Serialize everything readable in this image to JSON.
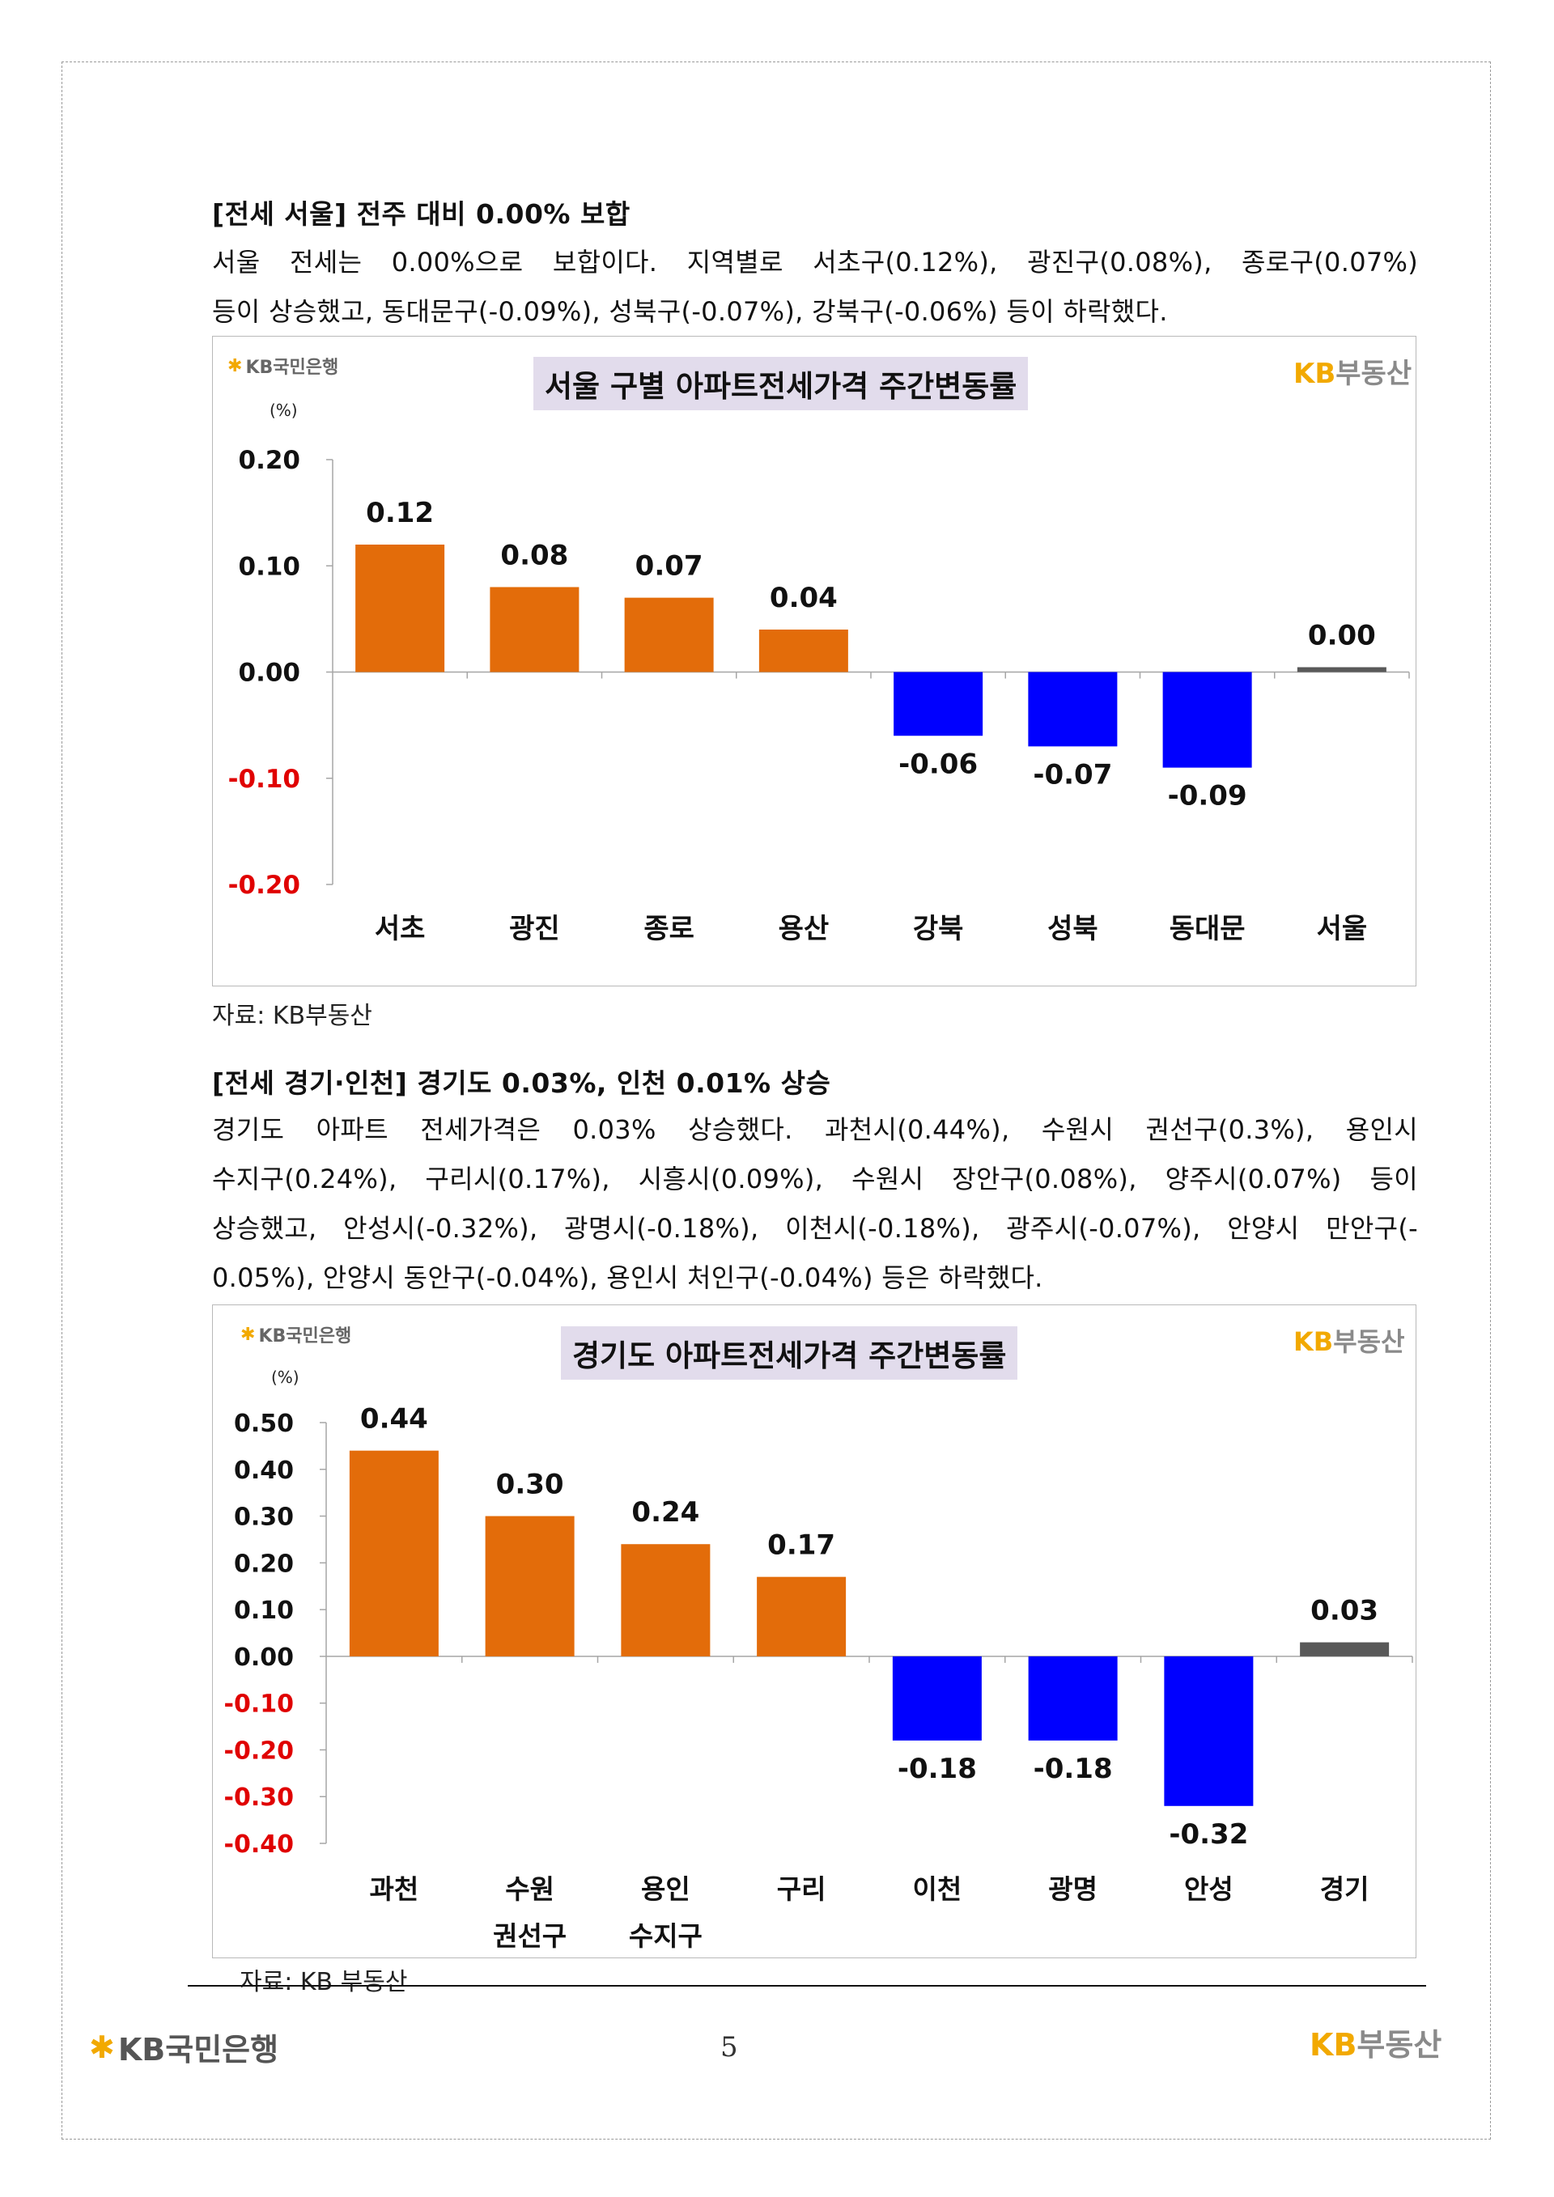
{
  "section1": {
    "heading": "[전세 서울] 전주 대비 0.00% 보합",
    "paragraph_lines": [
      "서울 전세는 0.00%으로 보합이다. 지역별로 서초구(0.12%), 광진구(0.08%), 종로구(0.07%)",
      "등이 상승했고, 동대문구(-0.09%), 성북구(-0.07%), 강북구(-0.06%) 등이 하락했다."
    ],
    "source": "자료: KB부동산"
  },
  "section2": {
    "heading": "[전세 경기·인천] 경기도 0.03%, 인천 0.01% 상승",
    "paragraph_lines": [
      "경기도 아파트 전세가격은 0.03% 상승했다. 과천시(0.44%), 수원시 권선구(0.3%), 용인시",
      "수지구(0.24%), 구리시(0.17%), 시흥시(0.09%), 수원시 장안구(0.08%), 양주시(0.07%) 등이",
      "상승했고, 안성시(-0.32%), 광명시(-0.18%), 이천시(-0.18%), 광주시(-0.07%), 안양시 만안구(-",
      "0.05%), 안양시 동안구(-0.04%), 용인시 처인구(-0.04%) 등은 하락했다."
    ],
    "source": "자료: KB 부동산"
  },
  "logos": {
    "kb_bank": "KB국민은행",
    "kb_realestate_kb": "KB",
    "kb_realestate_text": "부동산"
  },
  "footer": {
    "page_number": "5"
  },
  "colors": {
    "positive": "#e36c0a",
    "negative": "#0000ff",
    "total": "#595959",
    "negative_tick": "#e00000",
    "title_bg": "#e2dcec",
    "kb_yellow": "#f2a900"
  },
  "chart_data": [
    {
      "type": "bar",
      "title": "서울 구별 아파트전세가격 주간변동률",
      "unit_label": "(%)",
      "ylim": [
        -0.2,
        0.2
      ],
      "yticks": [
        0.2,
        0.1,
        0.0,
        -0.1,
        -0.2
      ],
      "ytick_labels": [
        "0.20",
        "0.10",
        "0.00",
        "-0.10",
        "-0.20"
      ],
      "categories": [
        [
          "서초"
        ],
        [
          "광진"
        ],
        [
          "종로"
        ],
        [
          "용산"
        ],
        [
          "강북"
        ],
        [
          "성북"
        ],
        [
          "동대문"
        ],
        [
          "서울"
        ]
      ],
      "values": [
        0.12,
        0.08,
        0.07,
        0.04,
        -0.06,
        -0.07,
        -0.09,
        0.0
      ],
      "value_labels": [
        "0.12",
        "0.08",
        "0.07",
        "0.04",
        "-0.06",
        "-0.07",
        "-0.09",
        "0.00"
      ],
      "total_index": 7,
      "grid": false
    },
    {
      "type": "bar",
      "title": "경기도 아파트전세가격 주간변동률",
      "unit_label": "(%)",
      "ylim": [
        -0.4,
        0.5
      ],
      "yticks": [
        0.5,
        0.4,
        0.3,
        0.2,
        0.1,
        0.0,
        -0.1,
        -0.2,
        -0.3,
        -0.4
      ],
      "ytick_labels": [
        "0.50",
        "0.40",
        "0.30",
        "0.20",
        "0.10",
        "0.00",
        "-0.10",
        "-0.20",
        "-0.30",
        "-0.40"
      ],
      "categories": [
        [
          "과천"
        ],
        [
          "수원",
          "권선구"
        ],
        [
          "용인",
          "수지구"
        ],
        [
          "구리"
        ],
        [
          "이천"
        ],
        [
          "광명"
        ],
        [
          "안성"
        ],
        [
          "경기"
        ]
      ],
      "values": [
        0.44,
        0.3,
        0.24,
        0.17,
        -0.18,
        -0.18,
        -0.32,
        0.03
      ],
      "value_labels": [
        "0.44",
        "0.30",
        "0.24",
        "0.17",
        "-0.18",
        "-0.18",
        "-0.32",
        "0.03"
      ],
      "total_index": 7,
      "grid": false
    }
  ]
}
